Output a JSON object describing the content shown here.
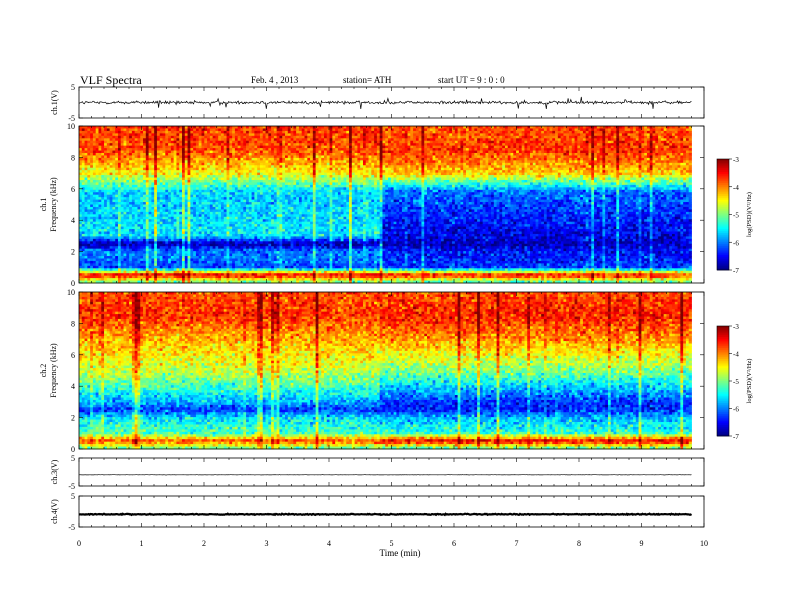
{
  "header": {
    "title": "VLF  Spectra",
    "date": "Feb. 4  , 2013",
    "station": "station= ATH",
    "start": "start  UT  =   9  : 0  : 0"
  },
  "chart_data": [
    {
      "panel": "ch1-waveform",
      "type": "line",
      "ylabel": "ch.1(V)",
      "ylim": [
        -5,
        5
      ],
      "yticks": [
        "5",
        "-5"
      ],
      "xlim": [
        0,
        10
      ],
      "data_end_min": 9.8,
      "baseline_V": 0.0,
      "noise_V": 0.5
    },
    {
      "panel": "ch1-spectrogram",
      "type": "heatmap",
      "ylabel": [
        "ch.1",
        "Frequency  (kHz)"
      ],
      "ylim": [
        0,
        10
      ],
      "yticks": [
        "0",
        "2",
        "4",
        "6",
        "8",
        "10"
      ],
      "xlim": [
        0,
        10
      ],
      "data_end_min": 9.8,
      "change_time_min": 4.8,
      "freq_bands_kHz": [
        0,
        0.5,
        1,
        2,
        2.5,
        3,
        5.8,
        7,
        8.5,
        10
      ],
      "logPSD_before": [
        -5.3,
        -3.4,
        -6.2,
        -6.0,
        -6.9,
        -5.6,
        -5.7,
        -4.5,
        -3.8,
        -3.7
      ],
      "logPSD_after": [
        -5.4,
        -3.5,
        -6.3,
        -6.5,
        -6.8,
        -6.6,
        -6.1,
        -4.3,
        -3.7,
        -3.8
      ],
      "colorbar": {
        "label": "log(PSD)(V²/Hz)",
        "range": [
          -7,
          -3
        ],
        "ticks": [
          "-3",
          "-4",
          "-5",
          "-6",
          "-7"
        ]
      }
    },
    {
      "panel": "ch2-spectrogram",
      "type": "heatmap",
      "ylabel": [
        "ch.2",
        "Frequency  (kHz)"
      ],
      "ylim": [
        0,
        10
      ],
      "yticks": [
        "0",
        "2",
        "4",
        "6",
        "8",
        "10"
      ],
      "xlim": [
        0,
        10
      ],
      "data_end_min": 9.8,
      "change_time_min": 4.8,
      "freq_bands_kHz": [
        0,
        0.5,
        1,
        2,
        2.5,
        3,
        5,
        7,
        8.5,
        10
      ],
      "logPSD_before": [
        -5.2,
        -3.8,
        -5.2,
        -5.6,
        -6.3,
        -5.8,
        -4.7,
        -4.2,
        -3.7,
        -3.8
      ],
      "logPSD_after": [
        -5.3,
        -3.4,
        -5.3,
        -5.8,
        -6.4,
        -6.3,
        -5.0,
        -4.1,
        -3.6,
        -3.8
      ],
      "colorbar": {
        "label": "log(PSD)(V²/Hz)",
        "range": [
          -7,
          -3
        ],
        "ticks": [
          "-3",
          "-4",
          "-5",
          "-6",
          "-7"
        ]
      }
    },
    {
      "panel": "ch3-waveform",
      "type": "line",
      "ylabel": "ch.3(V)",
      "ylim": [
        -5,
        5
      ],
      "yticks": [
        "5",
        "-5"
      ],
      "xlim": [
        0,
        10
      ],
      "data_end_min": 9.8,
      "baseline_V": -1.0,
      "noise_V": 0.05
    },
    {
      "panel": "ch4-waveform",
      "type": "line",
      "ylabel": "ch.4(V)",
      "ylim": [
        -5,
        5
      ],
      "yticks": [
        "5",
        "-5"
      ],
      "xlim": [
        0,
        10
      ],
      "data_end_min": 9.8,
      "baseline_V": -0.9,
      "noise_V": 0.15
    }
  ],
  "xaxis": {
    "label": "Time  (min)",
    "ticks": [
      "0",
      "1",
      "2",
      "3",
      "4",
      "5",
      "6",
      "7",
      "8",
      "9",
      "10"
    ]
  }
}
